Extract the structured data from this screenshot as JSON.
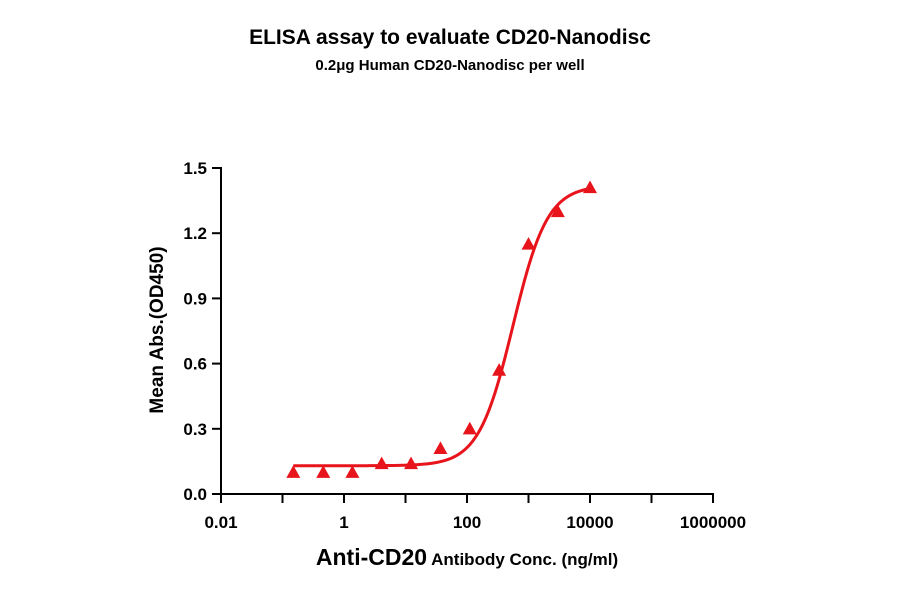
{
  "chart_data": {
    "type": "scatter",
    "title": "ELISA assay to evaluate CD20-Nanodisc",
    "subtitle": "0.2μg Human CD20-Nanodisc per well",
    "xlabel_main": "Anti-CD20",
    "xlabel_rest": " Antibody Conc. (ng/ml)",
    "ylabel": "Mean Abs.(OD450)",
    "x_scale": "log",
    "xlim": [
      0.01,
      1000000
    ],
    "ylim": [
      0,
      1.5
    ],
    "x_ticks": [
      "0.01",
      "1",
      "100",
      "10000",
      "1000000"
    ],
    "x_tick_values": [
      0.01,
      1,
      100,
      10000,
      1000000
    ],
    "y_ticks": [
      "0.0",
      "0.3",
      "0.6",
      "0.9",
      "1.2",
      "1.5"
    ],
    "y_tick_values": [
      0,
      0.3,
      0.6,
      0.9,
      1.2,
      1.5
    ],
    "marker": "triangle",
    "color": "#e8141b",
    "series": [
      {
        "x": [
          0.15,
          0.46,
          1.37,
          4.1,
          12.3,
          37,
          111,
          333,
          1000,
          3000,
          10000
        ],
        "y": [
          0.1,
          0.1,
          0.1,
          0.14,
          0.14,
          0.21,
          0.3,
          0.57,
          1.15,
          1.3,
          1.41
        ]
      }
    ],
    "fit_curve": {
      "bottom": 0.13,
      "top": 1.42,
      "ec50": 560,
      "hill": 1.55
    }
  }
}
